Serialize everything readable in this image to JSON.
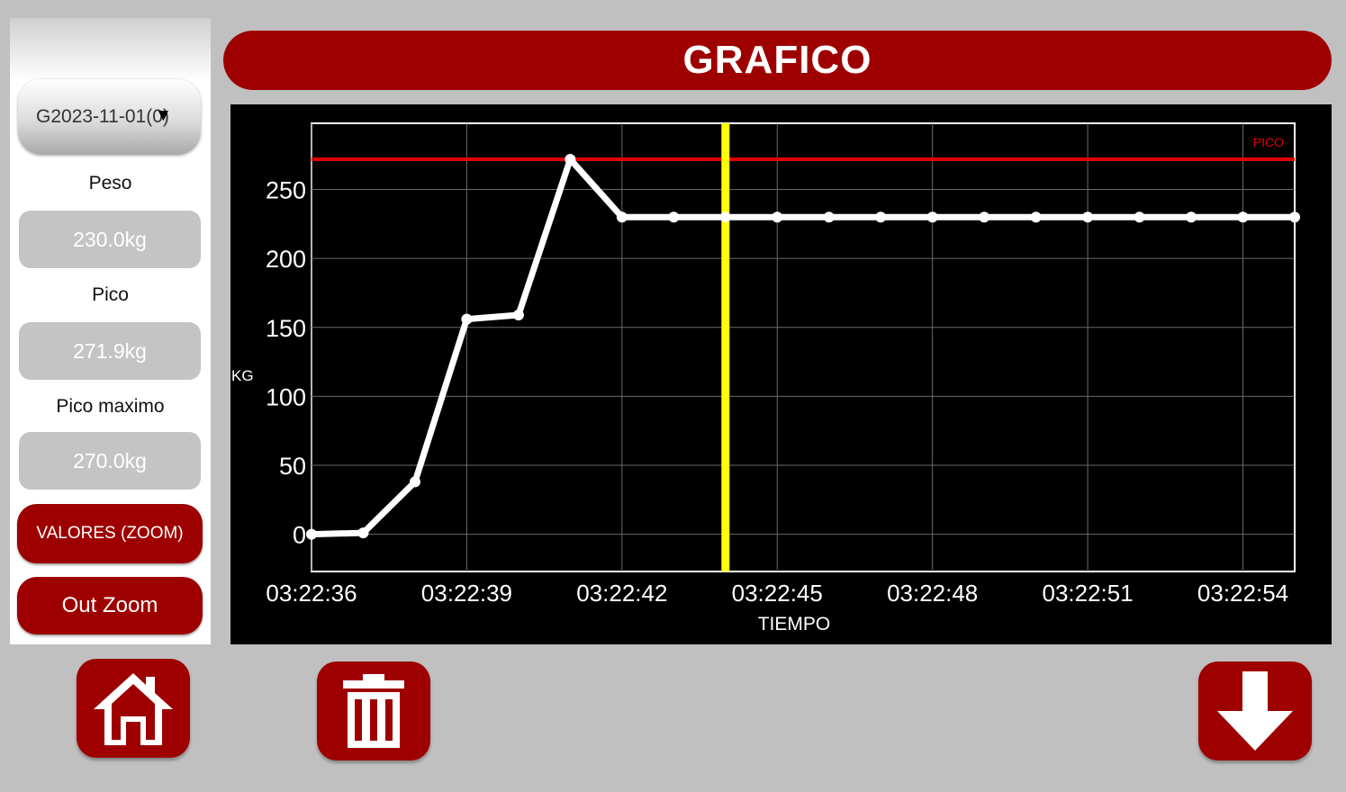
{
  "sidebar": {
    "selector_value": "G2023-11-01(0)",
    "peso_label": "Peso",
    "peso_value": "230.0kg",
    "pico_label": "Pico",
    "pico_value": "271.9kg",
    "pico_max_label": "Pico maximo",
    "pico_max_value": "270.0kg",
    "zoom_button": "VALORES (ZOOM)",
    "out_zoom_button": "Out Zoom"
  },
  "header": {
    "title": "GRAFICO"
  },
  "colors": {
    "accent": "#9e0000",
    "chart_line": "#ffffff",
    "peak_line": "#e00000",
    "cursor_line": "#ffff00"
  },
  "chart_data": {
    "type": "line",
    "xlabel": "TIEMPO",
    "ylabel": "KG",
    "x_tick_labels": [
      "03:22:36",
      "03:22:39",
      "03:22:42",
      "03:22:45",
      "03:22:48",
      "03:22:51",
      "03:22:54"
    ],
    "y_ticks": [
      0,
      50,
      100,
      150,
      200,
      250
    ],
    "x_range_seconds_from_first_tick": [
      0,
      19
    ],
    "ylim": [
      -27,
      298
    ],
    "grid": true,
    "series": [
      {
        "x": [
          0,
          1,
          2,
          3,
          4,
          5,
          6,
          7,
          8,
          9,
          10,
          11,
          12,
          13,
          14,
          15,
          16,
          17,
          18,
          19
        ],
        "values": [
          0,
          1,
          38,
          156,
          159,
          271.9,
          230,
          230,
          230,
          230,
          230,
          230,
          230,
          230,
          230,
          230,
          230,
          230,
          230,
          230
        ]
      }
    ],
    "peak_line": {
      "value": 271.9,
      "label": "PICO"
    },
    "cursor_x": 8
  },
  "footer": {
    "home_icon": "home-icon",
    "delete_icon": "trash-icon",
    "download_icon": "arrow-down-icon"
  }
}
